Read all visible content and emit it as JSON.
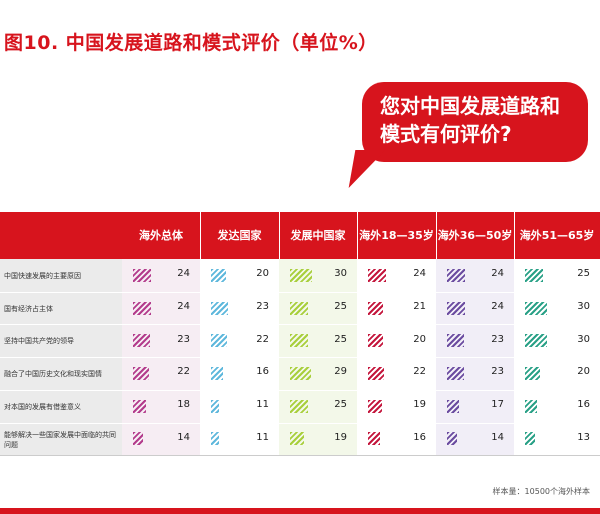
{
  "title": "图10. 中国发展道路和模式评价（单位%）",
  "bubble": [
    "您对中国发展道路和",
    "模式有何评价?"
  ],
  "sample_note": "样本量：10500个海外样本",
  "colors": {
    "brand": "#d7141d",
    "swatches": [
      "#b33c8c",
      "#5fb8dc",
      "#a8cf3c",
      "#c4173d",
      "#6b4ca0",
      "#2aa187"
    ]
  },
  "chart_data": {
    "type": "table",
    "columns": [
      {
        "label": "海外总体"
      },
      {
        "label": "发达国家"
      },
      {
        "label": "发展中国家"
      },
      {
        "label": "海外 18—35岁"
      },
      {
        "label": "海外 36—50岁"
      },
      {
        "label": "海外 51—65岁"
      }
    ],
    "rows": [
      {
        "label": "中国快速发展的主要原因",
        "values": [
          24,
          20,
          30,
          24,
          24,
          25
        ]
      },
      {
        "label": "国有经济占主体",
        "values": [
          24,
          23,
          25,
          21,
          24,
          30
        ]
      },
      {
        "label": "坚持中国共产党的领导",
        "values": [
          23,
          22,
          25,
          20,
          23,
          30
        ]
      },
      {
        "label": "融合了中国历史文化和现实国情",
        "values": [
          22,
          16,
          29,
          22,
          23,
          20
        ]
      },
      {
        "label": "对本国的发展有借鉴意义",
        "values": [
          18,
          11,
          25,
          19,
          17,
          16
        ]
      },
      {
        "label": "能够解决一些国家发展中面临的共同问题",
        "values": [
          14,
          11,
          19,
          16,
          14,
          13
        ]
      }
    ]
  }
}
